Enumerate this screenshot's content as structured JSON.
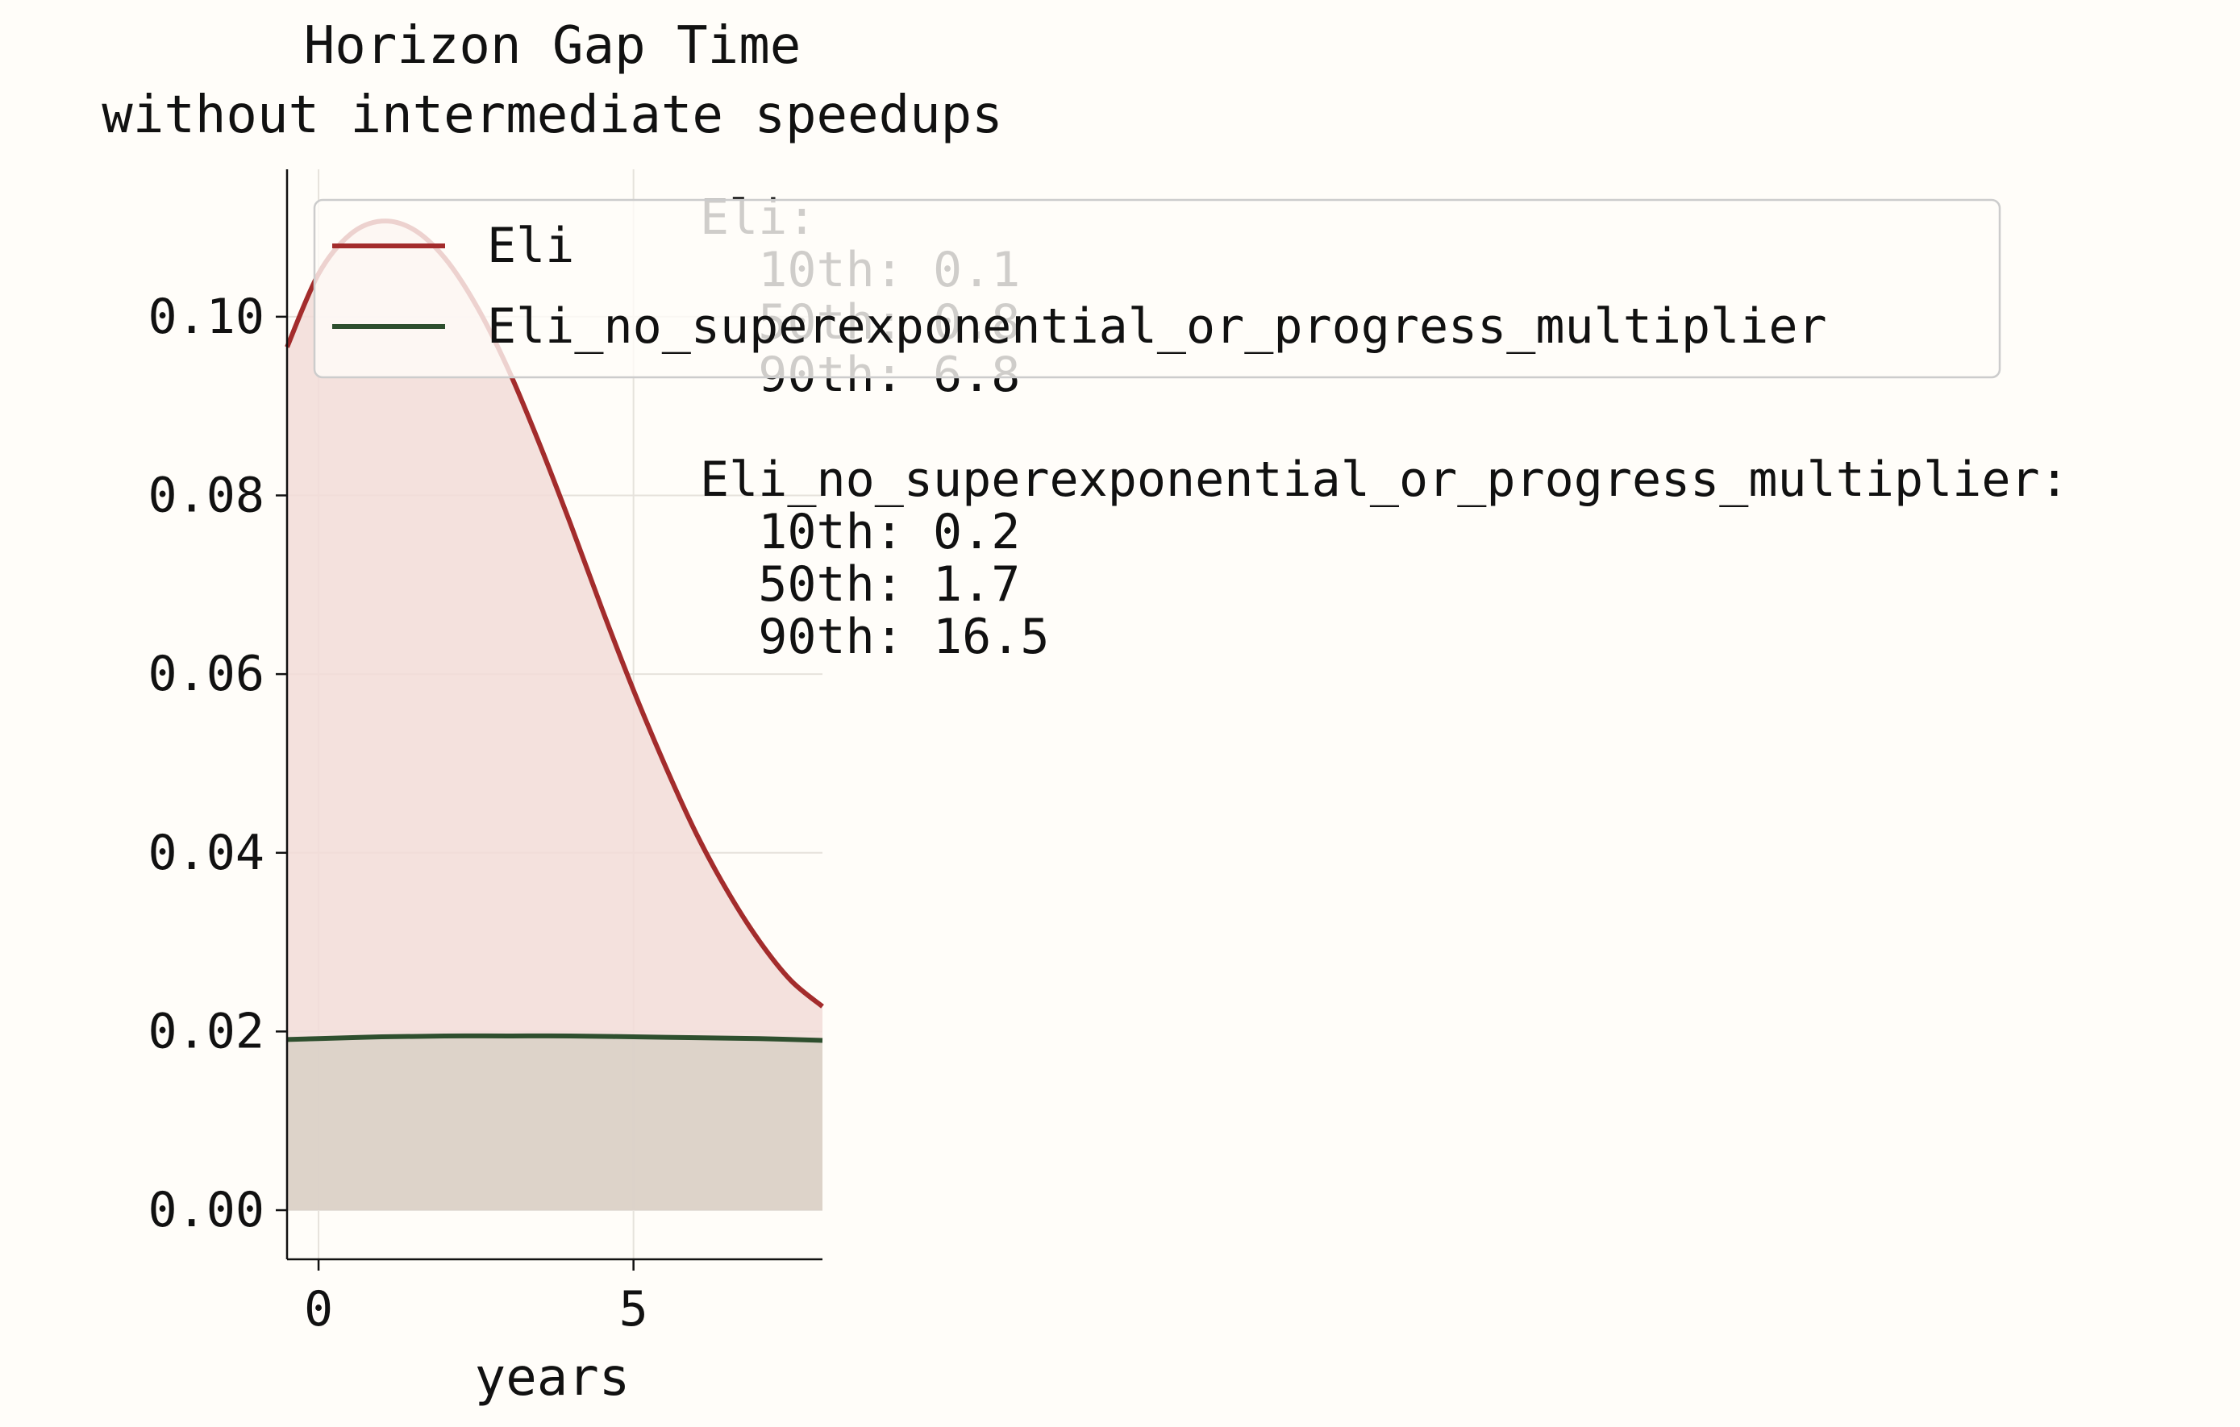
{
  "chart_data": {
    "type": "area",
    "title": "Horizon Gap Time\nwithout intermediate speedups",
    "xlabel": "years",
    "ylabel": "",
    "xlim": [
      -0.5,
      8.0
    ],
    "ylim": [
      -0.0055,
      0.1165
    ],
    "xticks": [
      0,
      5
    ],
    "yticks": [
      0.0,
      0.02,
      0.04,
      0.06,
      0.08,
      0.1
    ],
    "ytick_labels": [
      "0.00",
      "0.02",
      "0.04",
      "0.06",
      "0.08",
      "0.10"
    ],
    "xtick_labels": [
      "0",
      "5"
    ],
    "grid": true,
    "legend_position": "top-left",
    "series": [
      {
        "name": "Eli",
        "color": "#a32c2c",
        "fill": "#f2dcd8",
        "x": [
          -0.5,
          0,
          0.5,
          1,
          1.5,
          2,
          2.5,
          3,
          3.5,
          4,
          4.5,
          5,
          5.5,
          6,
          6.5,
          7,
          7.5,
          8
        ],
        "y": [
          0.0966,
          0.1048,
          0.1092,
          0.1107,
          0.1098,
          0.1066,
          0.1013,
          0.0943,
          0.0859,
          0.0768,
          0.0673,
          0.0582,
          0.0498,
          0.0421,
          0.0356,
          0.0301,
          0.0257,
          0.0228
        ]
      },
      {
        "name": "Eli_no_superexponential_or_progress_multiplier",
        "color": "#2e4f2e",
        "fill": "#d8d0c6",
        "x": [
          -0.5,
          0,
          1,
          2,
          3,
          4,
          5,
          6,
          7,
          8
        ],
        "y": [
          0.0191,
          0.0192,
          0.0194,
          0.0195,
          0.0195,
          0.0195,
          0.0194,
          0.0193,
          0.0192,
          0.019
        ]
      }
    ],
    "annotation": [
      "Eli:",
      "  10th: 0.1",
      "  50th: 0.8",
      "  90th: 6.8",
      "",
      "Eli_no_superexponential_or_progress_multiplier:",
      "  10th: 0.2",
      "  50th: 1.7",
      "  90th: 16.5"
    ]
  }
}
